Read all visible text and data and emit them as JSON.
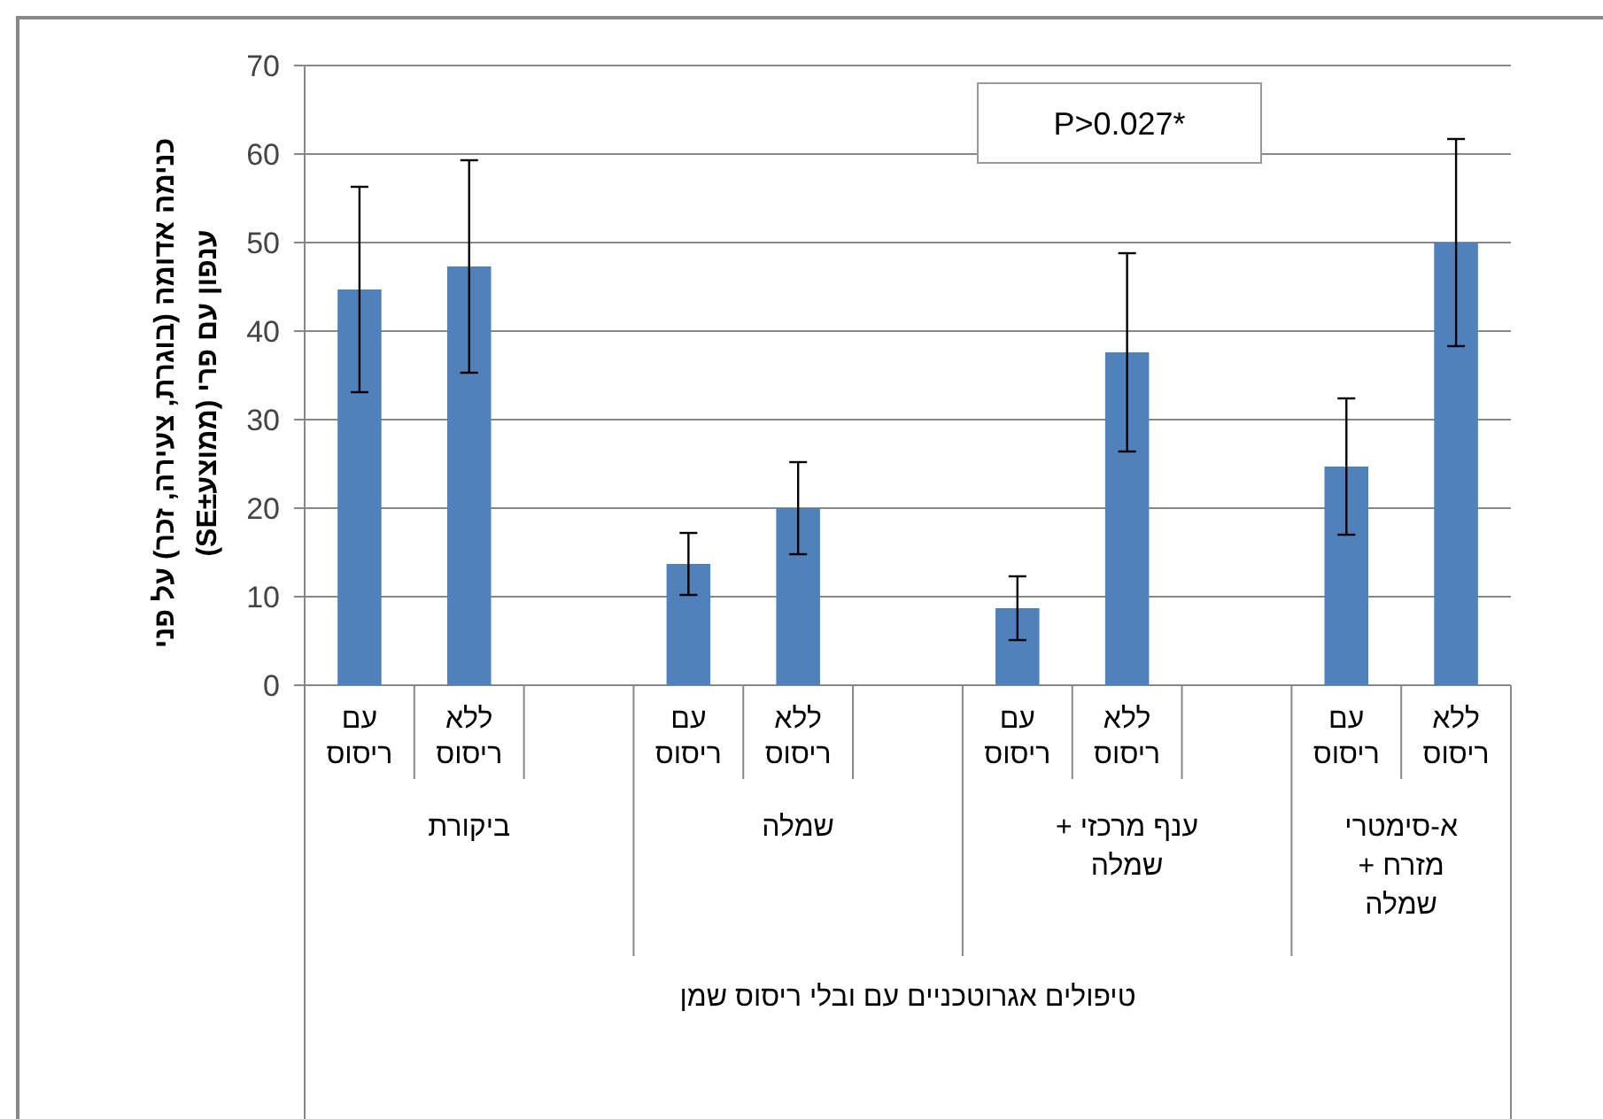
{
  "chart_data": {
    "type": "bar",
    "categories": [
      "עם ריסוס",
      "ללא ריסוס",
      null,
      "עם ריסוס",
      "ללא ריסוס",
      null,
      "עם ריסוס",
      "ללא ריסוס",
      null,
      "עם ריסוס",
      "ללא ריסוס"
    ],
    "values": [
      44.7,
      47.3,
      null,
      13.7,
      20,
      null,
      8.7,
      37.6,
      null,
      24.7,
      50
    ],
    "errors": [
      11.6,
      12,
      null,
      3.5,
      5.2,
      null,
      3.6,
      11.2,
      null,
      7.7,
      11.7
    ],
    "color": "#4f81bd",
    "ylim": [
      0,
      70
    ],
    "yticks": [
      0,
      10,
      20,
      30,
      40,
      50,
      60,
      70
    ],
    "grid": "y",
    "ylabel": "כנימה אדומה (בוגרת, צעירה, זכר) על פני ענפון עם פרי (ממוצע±SE)",
    "annotations": [
      "P>0.027*",
      "ביקורת",
      "שמלה",
      "ענף מרכזי + שמלה",
      "א-סימטרי מזרח + שמלה",
      "טיפולים אגרוטכניים עם ובלי ריסוס שמן"
    ]
  }
}
